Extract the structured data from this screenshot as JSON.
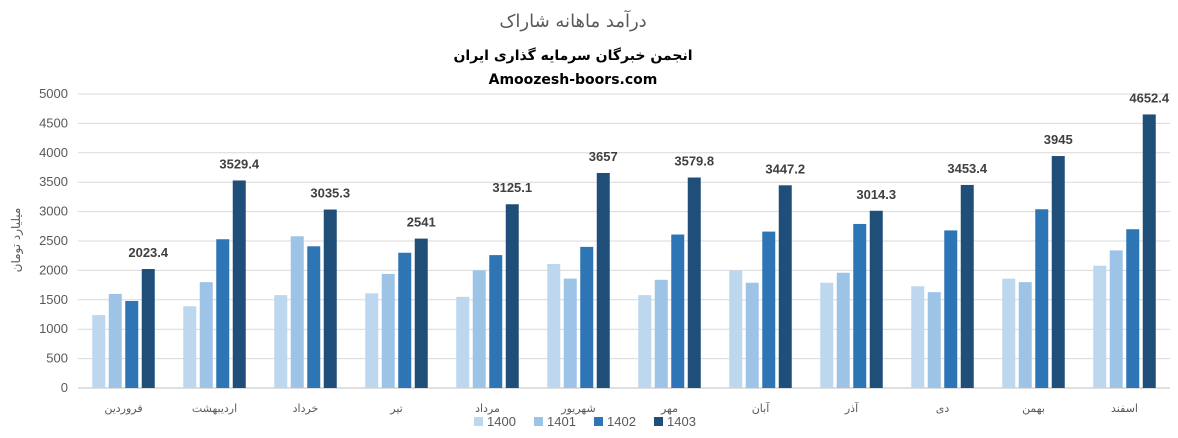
{
  "chart_data": {
    "type": "bar",
    "title": "درآمد ماهانه شاراک",
    "subtitle_lines": [
      "انجمن خبرگان سرمایه گذاری ایران",
      "Amoozesh-boors.com"
    ],
    "ylabel": "میلیارد تومان",
    "xlabel": "",
    "ylim": [
      0,
      5000
    ],
    "yticks": [
      0,
      500,
      1000,
      1500,
      2000,
      2500,
      3000,
      3500,
      4000,
      4500,
      5000
    ],
    "grid": true,
    "legend_position": "bottom",
    "categories": [
      "فروردین",
      "اردیبهشت",
      "خرداد",
      "تیر",
      "مرداد",
      "شهریور",
      "مهر",
      "آبان",
      "آذر",
      "دی",
      "بهمن",
      "اسفند"
    ],
    "series": [
      {
        "name": "1400",
        "color": "#bdd7ee",
        "values": [
          1240,
          1390,
          1580,
          1610,
          1550,
          2110,
          1580,
          2000,
          1790,
          1730,
          1860,
          2080
        ]
      },
      {
        "name": "1401",
        "color": "#9dc3e6",
        "values": [
          1600,
          1800,
          2580,
          1940,
          2000,
          1860,
          1840,
          1790,
          1960,
          1630,
          1800,
          2340
        ]
      },
      {
        "name": "1402",
        "color": "#2e75b6",
        "values": [
          1480,
          2530,
          2410,
          2300,
          2260,
          2400,
          2610,
          2660,
          2790,
          2680,
          3040,
          2700
        ]
      },
      {
        "name": "1403",
        "color": "#1f4e79",
        "values": [
          2023.4,
          3529.4,
          3035.3,
          2541,
          3125.1,
          3657,
          3579.8,
          3447.2,
          3014.3,
          3453.4,
          3945,
          4652.4
        ]
      }
    ],
    "data_labels": {
      "series": "1403",
      "values": [
        "2023.4",
        "3529.4",
        "3035.3",
        "2541",
        "3125.1",
        "3657",
        "3579.8",
        "3447.2",
        "3014.3",
        "3453.4",
        "3945",
        "4652.4"
      ]
    }
  }
}
